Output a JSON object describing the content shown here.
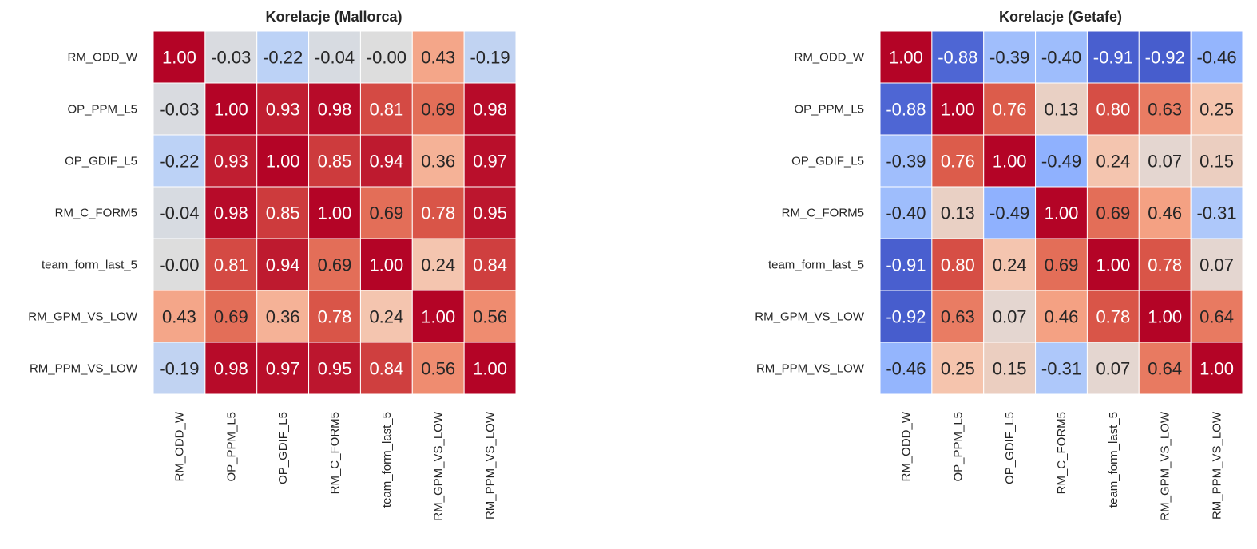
{
  "chart_data": [
    {
      "type": "heatmap",
      "title": "Korelacje (Mallorca)",
      "colormap": "coolwarm",
      "vmin": -1,
      "vmax": 1,
      "labels": [
        "RM_ODD_W",
        "OP_PPM_L5",
        "OP_GDIF_L5",
        "RM_C_FORM5",
        "team_form_last_5",
        "RM_GPM_VS_LOW",
        "RM_PPM_VS_LOW"
      ],
      "cells": [
        [
          "1.00",
          "-0.03",
          "-0.22",
          "-0.04",
          "-0.00",
          "0.43",
          "-0.19"
        ],
        [
          "-0.03",
          "1.00",
          "0.93",
          "0.98",
          "0.81",
          "0.69",
          "0.98"
        ],
        [
          "-0.22",
          "0.93",
          "1.00",
          "0.85",
          "0.94",
          "0.36",
          "0.97"
        ],
        [
          "-0.04",
          "0.98",
          "0.85",
          "1.00",
          "0.69",
          "0.78",
          "0.95"
        ],
        [
          "-0.00",
          "0.81",
          "0.94",
          "0.69",
          "1.00",
          "0.24",
          "0.84"
        ],
        [
          "0.43",
          "0.69",
          "0.36",
          "0.78",
          "0.24",
          "1.00",
          "0.56"
        ],
        [
          "-0.19",
          "0.98",
          "0.97",
          "0.95",
          "0.84",
          "0.56",
          "1.00"
        ]
      ]
    },
    {
      "type": "heatmap",
      "title": "Korelacje (Getafe)",
      "colormap": "coolwarm",
      "vmin": -1,
      "vmax": 1,
      "labels": [
        "RM_ODD_W",
        "OP_PPM_L5",
        "OP_GDIF_L5",
        "RM_C_FORM5",
        "team_form_last_5",
        "RM_GPM_VS_LOW",
        "RM_PPM_VS_LOW"
      ],
      "cells": [
        [
          "1.00",
          "-0.88",
          "-0.39",
          "-0.40",
          "-0.91",
          "-0.92",
          "-0.46"
        ],
        [
          "-0.88",
          "1.00",
          "0.76",
          "0.13",
          "0.80",
          "0.63",
          "0.25"
        ],
        [
          "-0.39",
          "0.76",
          "1.00",
          "-0.49",
          "0.24",
          "0.07",
          "0.15"
        ],
        [
          "-0.40",
          "0.13",
          "-0.49",
          "1.00",
          "0.69",
          "0.46",
          "-0.31"
        ],
        [
          "-0.91",
          "0.80",
          "0.24",
          "0.69",
          "1.00",
          "0.78",
          "0.07"
        ],
        [
          "-0.92",
          "0.63",
          "0.07",
          "0.46",
          "0.78",
          "1.00",
          "0.64"
        ],
        [
          "-0.46",
          "0.25",
          "0.15",
          "-0.31",
          "0.07",
          "0.64",
          "1.00"
        ]
      ]
    }
  ]
}
